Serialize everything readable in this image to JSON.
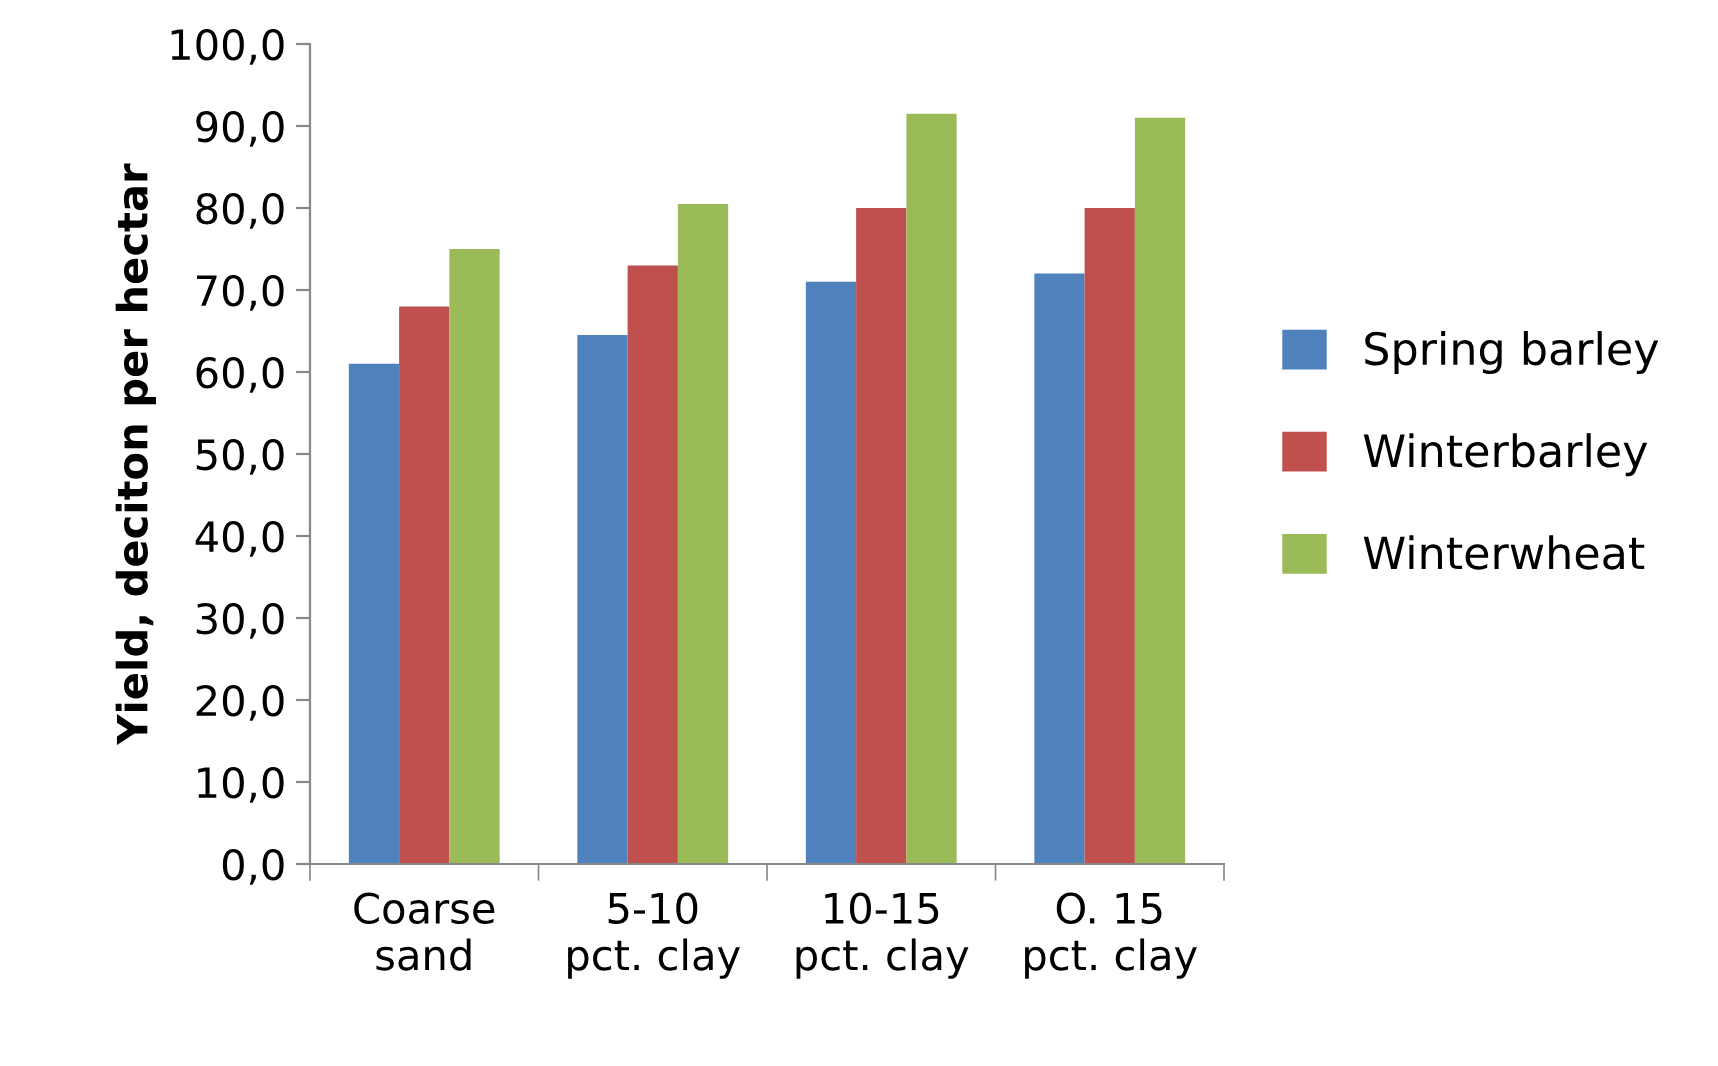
{
  "chart_data": {
    "type": "bar",
    "ylabel": "Yield, deciton per hectar",
    "categories": [
      "Coarse\nsand",
      "5-10\npct. clay",
      "10-15\npct. clay",
      "O. 15\npct. clay"
    ],
    "series": [
      {
        "name": "Spring barley",
        "color": "#4f81bd",
        "values": [
          61.0,
          64.5,
          71.0,
          72.0
        ]
      },
      {
        "name": "Winterbarley",
        "color": "#c0504d",
        "values": [
          68.0,
          73.0,
          80.0,
          80.0
        ]
      },
      {
        "name": "Winterwheat",
        "color": "#9bbb59",
        "values": [
          75.0,
          80.5,
          91.5,
          91.0
        ]
      }
    ],
    "ylim": [
      0,
      100
    ],
    "yticks": [
      {
        "value": 0,
        "label": "0,0"
      },
      {
        "value": 10,
        "label": "10,0"
      },
      {
        "value": 20,
        "label": "20,0"
      },
      {
        "value": 30,
        "label": "30,0"
      },
      {
        "value": 40,
        "label": "40,0"
      },
      {
        "value": 50,
        "label": "50,0"
      },
      {
        "value": 60,
        "label": "60,0"
      },
      {
        "value": 70,
        "label": "70,0"
      },
      {
        "value": 80,
        "label": "80,0"
      },
      {
        "value": 90,
        "label": "90,0"
      },
      {
        "value": 100,
        "label": "100,0"
      }
    ],
    "grid": false,
    "legend": "right"
  }
}
